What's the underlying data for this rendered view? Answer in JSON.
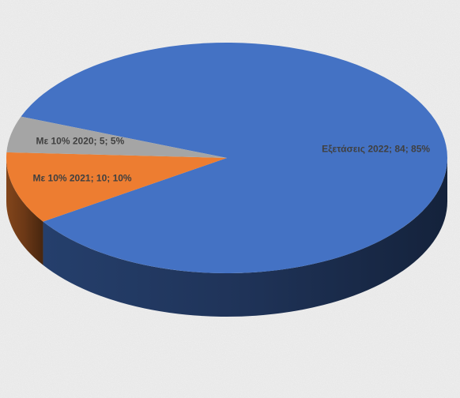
{
  "chart_data": {
    "type": "pie3d",
    "categories": [
      "Εξετάσεις 2022",
      "Με 10% 2021",
      "Με 10% 2020"
    ],
    "values": [
      84,
      10,
      5
    ],
    "value_labels": [
      "Εξετάσεις 2022; 84; 85%",
      "Με 10% 2021; 10; 10%",
      "Με 10% 2020; 5; 5%"
    ],
    "colors": [
      "#4472c4",
      "#ed7d31",
      "#a5a5a5"
    ]
  }
}
